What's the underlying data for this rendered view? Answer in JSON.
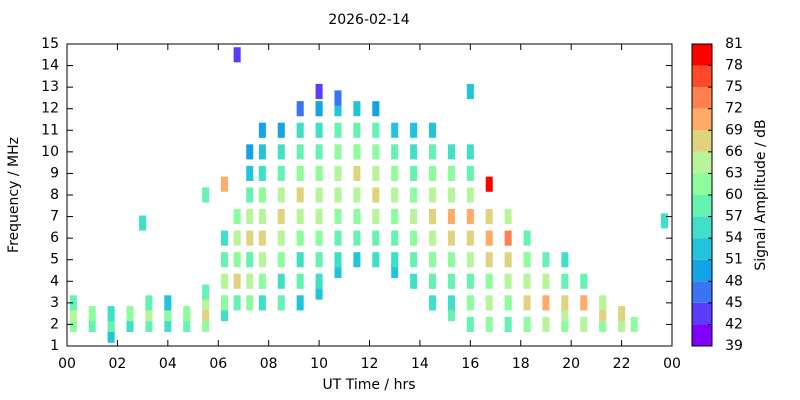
{
  "chart_data": {
    "type": "heatmap",
    "title": "2026-02-14",
    "x_label": "UT Time / hrs",
    "y_label": "Frequency / MHz",
    "xlim": [
      0,
      24
    ],
    "xticks": [
      {
        "value": 0,
        "label": "00"
      },
      {
        "value": 2,
        "label": "02"
      },
      {
        "value": 4,
        "label": "04"
      },
      {
        "value": 6,
        "label": "06"
      },
      {
        "value": 8,
        "label": "08"
      },
      10,
      12,
      14,
      16,
      18,
      20,
      22,
      {
        "value": 24,
        "label": "00"
      }
    ],
    "ylim": [
      1,
      15
    ],
    "yticks": [
      1,
      2,
      3,
      4,
      5,
      6,
      7,
      8,
      9,
      10,
      11,
      12,
      13,
      14,
      15
    ],
    "x": [
      0.25,
      0.25,
      0.25,
      1,
      1,
      1.75,
      1.75,
      1.75,
      2.5,
      2.5,
      3,
      3.25,
      3.25,
      3.25,
      4,
      4,
      4,
      4.75,
      4.75,
      5.5,
      5.5,
      5.5,
      5.5,
      5.5,
      6.25,
      6.25,
      6.25,
      6.25,
      6.25,
      6.25,
      6.75,
      6.75,
      6.75,
      6.75,
      6.75,
      6.75,
      7.25,
      7.25,
      7.25,
      7.25,
      7.25,
      7.25,
      7.25,
      7.25,
      7.75,
      7.75,
      7.75,
      7.75,
      7.75,
      7.75,
      7.75,
      7.75,
      7.75,
      8.5,
      8.5,
      8.5,
      8.5,
      8.5,
      8.5,
      8.5,
      8.5,
      8.5,
      9.25,
      9.25,
      9.25,
      9.25,
      9.25,
      9.25,
      9.25,
      9.25,
      9.25,
      9.25,
      10,
      10,
      10,
      10,
      10,
      10,
      10,
      10,
      10,
      10,
      10,
      10.75,
      10.75,
      10.75,
      10.75,
      10.75,
      10.75,
      10.75,
      10.75,
      10.75,
      10.75,
      11.5,
      11.5,
      11.5,
      11.5,
      11.5,
      11.5,
      11.5,
      11.5,
      12.25,
      12.25,
      12.25,
      12.25,
      12.25,
      12.25,
      12.25,
      12.25,
      13,
      13,
      13,
      13,
      13,
      13,
      13,
      13,
      13.75,
      13.75,
      13.75,
      13.75,
      13.75,
      13.75,
      13.75,
      13.75,
      14.5,
      14.5,
      14.5,
      14.5,
      14.5,
      14.5,
      14.5,
      14.5,
      14.5,
      15.25,
      15.25,
      15.25,
      15.25,
      15.25,
      15.25,
      15.25,
      15.25,
      15.25,
      16,
      16,
      16,
      16,
      16,
      16,
      16,
      16,
      16,
      16,
      16.75,
      16.75,
      16.75,
      16.75,
      16.75,
      16.75,
      16.75,
      17.5,
      17.5,
      17.5,
      17.5,
      17.5,
      17.5,
      18.25,
      18.25,
      18.25,
      18.25,
      18.25,
      19,
      19,
      19,
      19,
      19.75,
      19.75,
      19.75,
      19.75,
      19.75,
      20.5,
      20.5,
      20.5,
      21.25,
      21.25,
      21.25,
      22,
      22,
      22.5,
      23.7
    ],
    "y": [
      2,
      2.5,
      3,
      2,
      2.5,
      1.5,
      2,
      2.5,
      2,
      2.5,
      6.7,
      2,
      2.5,
      3,
      2,
      2.5,
      3,
      2,
      2.5,
      2,
      2.5,
      3,
      3.5,
      8,
      2.5,
      3,
      4,
      5,
      6,
      8.5,
      3,
      4,
      5,
      6,
      7,
      14.5,
      3,
      4,
      5,
      6,
      7,
      8,
      9,
      10,
      3,
      4,
      5,
      6,
      7,
      8,
      9,
      10,
      11,
      3,
      4,
      5,
      6,
      7,
      8,
      9,
      10,
      11,
      3,
      4,
      5,
      6,
      7,
      8,
      9,
      10,
      11,
      12,
      3.5,
      4,
      5,
      6,
      7,
      8,
      9,
      10,
      11,
      12,
      12.8,
      4.5,
      5,
      6,
      7,
      8,
      9,
      10,
      11,
      12,
      12.5,
      5,
      6,
      7,
      8,
      9,
      10,
      11,
      12,
      5,
      6,
      7,
      8,
      9,
      10,
      11,
      12,
      4.5,
      5,
      6,
      7,
      8,
      9,
      10,
      11,
      4,
      5,
      6,
      7,
      8,
      9,
      10,
      11,
      3,
      4,
      5,
      6,
      7,
      8,
      9,
      10,
      11,
      2.5,
      3,
      4,
      5,
      6,
      7,
      8,
      9,
      10,
      2,
      3,
      4,
      5,
      6,
      7,
      8,
      9,
      10,
      12.8,
      2,
      3,
      4,
      5,
      6,
      7,
      8.5,
      2,
      3,
      4,
      5,
      6,
      7,
      2,
      3,
      4,
      5,
      6,
      2,
      3,
      4,
      5,
      2,
      2.5,
      3,
      4,
      5,
      2,
      3,
      4,
      2,
      2.5,
      3,
      2,
      2.5,
      2,
      6.8
    ],
    "values": [
      60,
      63,
      58,
      57,
      60,
      52,
      58,
      55,
      55,
      60,
      54,
      58,
      63,
      57,
      55,
      60,
      52,
      58,
      62,
      60,
      66,
      63,
      58,
      57,
      55,
      60,
      63,
      57,
      55,
      69,
      58,
      66,
      60,
      63,
      60,
      42,
      60,
      63,
      57,
      66,
      63,
      57,
      52,
      48,
      55,
      60,
      63,
      66,
      63,
      60,
      54,
      51,
      48,
      57,
      54,
      60,
      63,
      66,
      63,
      57,
      54,
      48,
      52,
      57,
      54,
      60,
      63,
      66,
      60,
      57,
      54,
      45,
      51,
      54,
      57,
      60,
      63,
      63,
      60,
      57,
      54,
      48,
      42,
      51,
      54,
      57,
      60,
      63,
      63,
      60,
      57,
      51,
      45,
      51,
      57,
      60,
      63,
      66,
      60,
      57,
      51,
      54,
      57,
      63,
      66,
      63,
      60,
      57,
      48,
      51,
      54,
      57,
      60,
      63,
      60,
      57,
      51,
      54,
      57,
      60,
      63,
      60,
      57,
      54,
      51,
      54,
      57,
      60,
      63,
      66,
      63,
      60,
      57,
      51,
      57,
      54,
      57,
      60,
      66,
      69,
      63,
      60,
      54,
      57,
      60,
      57,
      63,
      66,
      69,
      63,
      57,
      54,
      51,
      60,
      63,
      60,
      66,
      69,
      66,
      78,
      57,
      60,
      63,
      66,
      72,
      63,
      60,
      66,
      63,
      60,
      57,
      63,
      69,
      63,
      57,
      60,
      63,
      66,
      57,
      54,
      63,
      69,
      57,
      60,
      66,
      63,
      63,
      66,
      60,
      54
    ],
    "colorbar": {
      "label": "Signal Amplitude / dB",
      "ticks": [
        39,
        42,
        45,
        48,
        51,
        54,
        57,
        60,
        63,
        66,
        69,
        72,
        75,
        78,
        81
      ],
      "colors": [
        "#8000ff",
        "#5a3cfc",
        "#3a74f2",
        "#13a4e8",
        "#22c4dc",
        "#40e0c8",
        "#66f2b2",
        "#8cfc9c",
        "#b8f59a",
        "#e0d37f",
        "#ffab66",
        "#ff7f50",
        "#ff4a2a",
        "#ff0000"
      ]
    }
  }
}
